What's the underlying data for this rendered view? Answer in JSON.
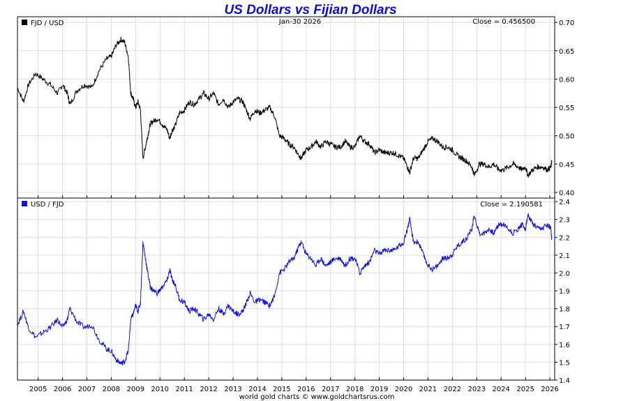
{
  "title": "US Dollars vs Fijian Dollars",
  "date_label": "Jan-30  2026",
  "footer": "world gold charts © www.goldchartsrus.com",
  "colors": {
    "title": "#0a0ae0",
    "fjd_usd": "#000000",
    "usd_fjd": "#1010e0",
    "grid": "#d8dde8",
    "panel_border": "#000000"
  },
  "chart_data": [
    {
      "type": "line",
      "legend": "FJD / USD",
      "close_label": "Close = 0.456500",
      "x_ticks": [
        "2005",
        "2006",
        "2007",
        "2008",
        "2009",
        "2010",
        "2011",
        "2012",
        "2013",
        "2014",
        "2015",
        "2016",
        "2017",
        "2018",
        "2019",
        "2020",
        "2021",
        "2022",
        "2023",
        "2024",
        "2025",
        "2026"
      ],
      "y_ticks": [
        "0.70",
        "0.65",
        "0.60",
        "0.55",
        "0.50",
        "0.45",
        "0.40"
      ],
      "ylim": [
        0.39,
        0.71
      ],
      "xlim": [
        2004.15,
        2026.2
      ],
      "x": [
        2004.15,
        2004.4,
        2004.6,
        2004.9,
        2005.2,
        2005.5,
        2005.8,
        2006.0,
        2006.2,
        2006.3,
        2006.6,
        2006.9,
        2007.2,
        2007.5,
        2007.8,
        2008.0,
        2008.2,
        2008.4,
        2008.55,
        2008.7,
        2008.8,
        2008.9,
        2009.0,
        2009.1,
        2009.2,
        2009.3,
        2009.4,
        2009.5,
        2009.6,
        2009.7,
        2009.9,
        2010.1,
        2010.3,
        2010.4,
        2010.5,
        2010.6,
        2010.8,
        2011.0,
        2011.2,
        2011.4,
        2011.6,
        2011.8,
        2012.0,
        2012.2,
        2012.4,
        2012.6,
        2012.8,
        2013.0,
        2013.2,
        2013.4,
        2013.5,
        2013.7,
        2013.9,
        2014.1,
        2014.3,
        2014.5,
        2014.7,
        2014.9,
        2015.1,
        2015.3,
        2015.5,
        2015.7,
        2015.8,
        2016.0,
        2016.2,
        2016.4,
        2016.6,
        2016.8,
        2017.0,
        2017.2,
        2017.4,
        2017.6,
        2017.8,
        2018.0,
        2018.2,
        2018.4,
        2018.6,
        2018.8,
        2019.0,
        2019.2,
        2019.4,
        2019.6,
        2019.8,
        2020.0,
        2020.15,
        2020.25,
        2020.4,
        2020.6,
        2020.8,
        2021.0,
        2021.2,
        2021.4,
        2021.6,
        2021.8,
        2022.0,
        2022.2,
        2022.4,
        2022.6,
        2022.8,
        2022.9,
        2023.1,
        2023.3,
        2023.5,
        2023.7,
        2023.9,
        2024.1,
        2024.3,
        2024.5,
        2024.7,
        2024.85,
        2025.0,
        2025.1,
        2025.3,
        2025.5,
        2025.7,
        2025.9,
        2026.05,
        2026.08
      ],
      "values": [
        0.585,
        0.56,
        0.59,
        0.61,
        0.6,
        0.59,
        0.575,
        0.59,
        0.575,
        0.555,
        0.58,
        0.59,
        0.585,
        0.615,
        0.635,
        0.64,
        0.66,
        0.67,
        0.665,
        0.64,
        0.575,
        0.565,
        0.55,
        0.56,
        0.545,
        0.46,
        0.48,
        0.5,
        0.52,
        0.525,
        0.53,
        0.52,
        0.51,
        0.495,
        0.51,
        0.515,
        0.54,
        0.545,
        0.56,
        0.555,
        0.565,
        0.575,
        0.565,
        0.575,
        0.555,
        0.565,
        0.55,
        0.56,
        0.565,
        0.56,
        0.55,
        0.53,
        0.545,
        0.54,
        0.545,
        0.55,
        0.535,
        0.5,
        0.495,
        0.485,
        0.48,
        0.465,
        0.46,
        0.475,
        0.48,
        0.49,
        0.48,
        0.49,
        0.485,
        0.48,
        0.48,
        0.49,
        0.48,
        0.48,
        0.5,
        0.49,
        0.485,
        0.47,
        0.475,
        0.47,
        0.47,
        0.47,
        0.465,
        0.46,
        0.445,
        0.435,
        0.46,
        0.46,
        0.475,
        0.49,
        0.495,
        0.49,
        0.48,
        0.48,
        0.475,
        0.465,
        0.46,
        0.455,
        0.445,
        0.43,
        0.45,
        0.45,
        0.445,
        0.45,
        0.44,
        0.44,
        0.445,
        0.45,
        0.445,
        0.44,
        0.445,
        0.43,
        0.44,
        0.445,
        0.445,
        0.44,
        0.445,
        0.457
      ]
    },
    {
      "type": "line",
      "legend": "USD / FJD",
      "close_label": "Close = 2.190581",
      "x_ticks": [
        "2005",
        "2006",
        "2007",
        "2008",
        "2009",
        "2010",
        "2011",
        "2012",
        "2013",
        "2014",
        "2015",
        "2016",
        "2017",
        "2018",
        "2019",
        "2020",
        "2021",
        "2022",
        "2023",
        "2024",
        "2025",
        "2026"
      ],
      "y_ticks": [
        "2.4",
        "2.3",
        "2.2",
        "2.1",
        "2.0",
        "1.9",
        "1.8",
        "1.7",
        "1.6",
        "1.5",
        "1.4"
      ],
      "ylim": [
        1.4,
        2.42
      ],
      "xlim": [
        2004.15,
        2026.2
      ]
    }
  ]
}
